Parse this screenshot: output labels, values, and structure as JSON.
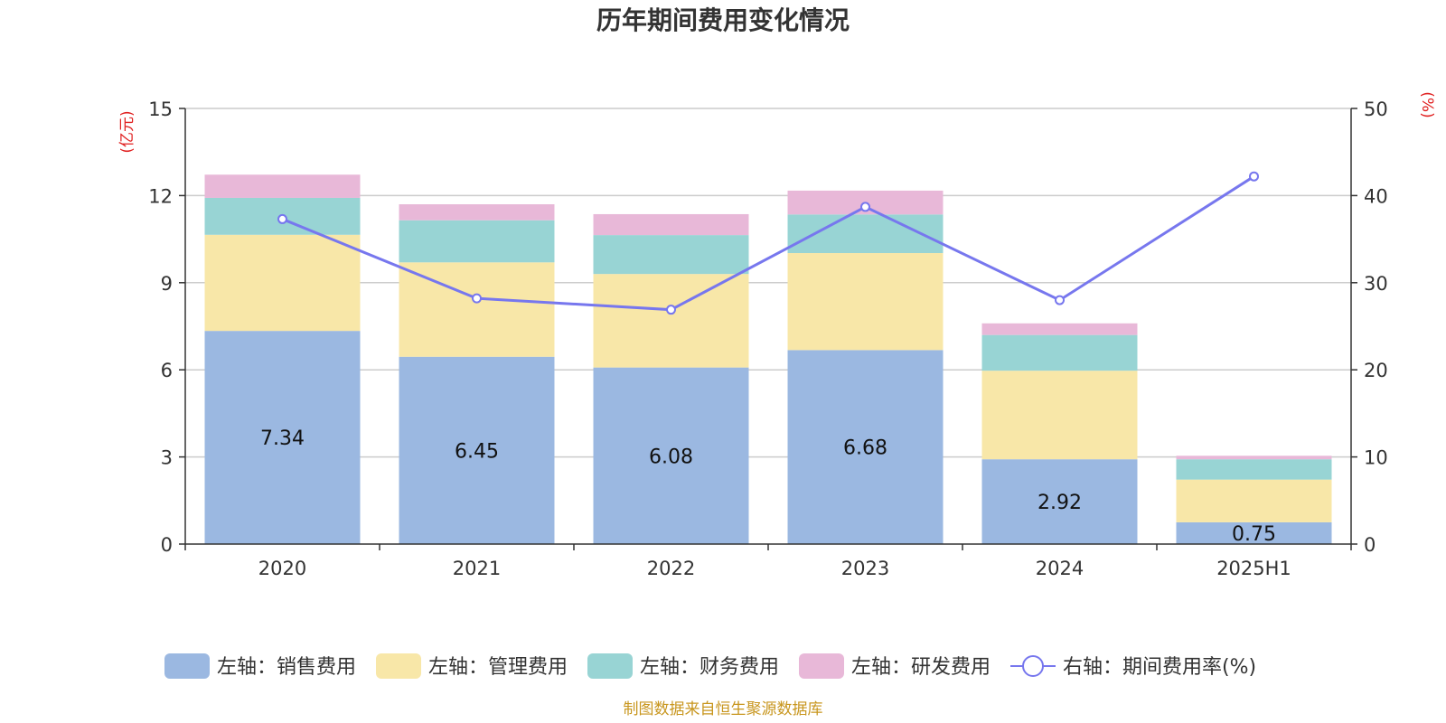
{
  "chart_data": {
    "type": "bar",
    "stacked": true,
    "title": "历年期间费用变化情况",
    "left_unit": "(亿元)",
    "right_unit": "(%)",
    "categories": [
      "2020",
      "2021",
      "2022",
      "2023",
      "2024",
      "2025H1"
    ],
    "y_left": {
      "ylim": [
        0,
        15
      ],
      "ticks": [
        "0",
        "3",
        "6",
        "9",
        "12",
        "15"
      ]
    },
    "y_right": {
      "ylim": [
        0,
        50
      ],
      "ticks": [
        "0",
        "10",
        "20",
        "30",
        "40",
        "50"
      ]
    },
    "grid": true,
    "legend_position": "bottom",
    "series": [
      {
        "name": "左轴：销售费用",
        "axis": "left",
        "kind": "bar",
        "color": "#9bb8e1",
        "values": [
          7.34,
          6.45,
          6.08,
          6.68,
          2.92,
          0.75
        ],
        "labels": [
          "7.34",
          "6.45",
          "6.08",
          "6.68",
          "2.92",
          "0.75"
        ]
      },
      {
        "name": "左轴：管理费用",
        "axis": "left",
        "kind": "bar",
        "color": "#f8e7a8",
        "values": [
          3.31,
          3.25,
          3.22,
          3.34,
          3.05,
          1.47
        ]
      },
      {
        "name": "左轴：财务费用",
        "axis": "left",
        "kind": "bar",
        "color": "#98d4d4",
        "values": [
          1.27,
          1.45,
          1.34,
          1.33,
          1.23,
          0.7
        ]
      },
      {
        "name": "左轴：研发费用",
        "axis": "left",
        "kind": "bar",
        "color": "#e8b8d8",
        "values": [
          0.8,
          0.55,
          0.72,
          0.82,
          0.4,
          0.12
        ]
      },
      {
        "name": "右轴：期间费用率(%)",
        "axis": "right",
        "kind": "line",
        "color": "#7777ee",
        "values": [
          37.3,
          28.2,
          26.9,
          38.7,
          28.0,
          42.2
        ]
      }
    ]
  },
  "source": "制图数据来自恒生聚源数据库"
}
